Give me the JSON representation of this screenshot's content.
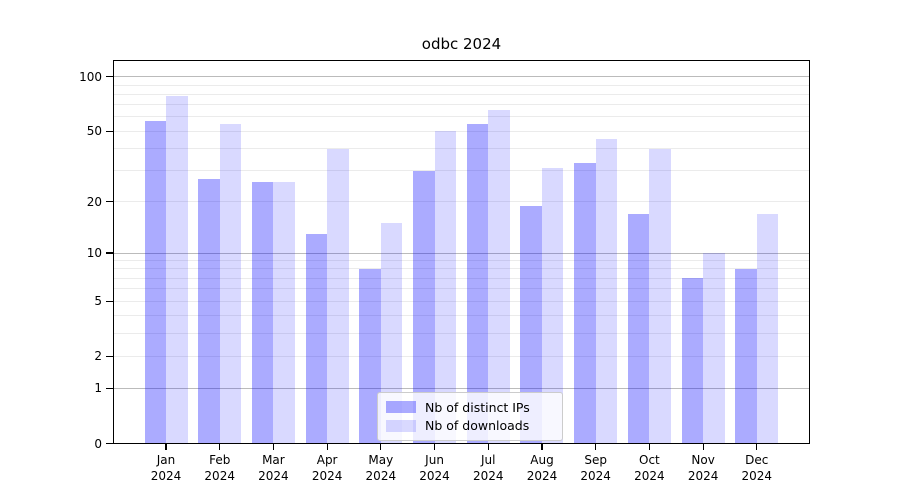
{
  "chart_data": {
    "type": "bar",
    "title": "odbc 2024",
    "categories": [
      "Jan",
      "Feb",
      "Mar",
      "Apr",
      "May",
      "Jun",
      "Jul",
      "Aug",
      "Sep",
      "Oct",
      "Nov",
      "Dec"
    ],
    "year": "2024",
    "series": [
      {
        "name": "Nb of distinct IPs",
        "base_color": "#0000ff",
        "alpha": 0.33,
        "rendered_color": "#ababff",
        "values": [
          57,
          27,
          26,
          13,
          8,
          30,
          55,
          19,
          33,
          17,
          7,
          8
        ]
      },
      {
        "name": "Nb of downloads",
        "base_color": "#0000ff",
        "alpha": 0.15,
        "rendered_color": "#d9d9ff",
        "values": [
          78,
          55,
          26,
          40,
          15,
          50,
          66,
          31,
          45,
          40,
          10,
          17
        ]
      }
    ],
    "yscale": "log1p",
    "yticks": [
      0,
      1,
      2,
      5,
      10,
      20,
      50,
      100
    ],
    "ylim": [
      0,
      124
    ],
    "xlabel": "",
    "ylabel": "",
    "grid": true,
    "grid_major_color": "#bbbbbb",
    "grid_minor_color": "#ebebeb",
    "legend_position": "bottom-center"
  }
}
